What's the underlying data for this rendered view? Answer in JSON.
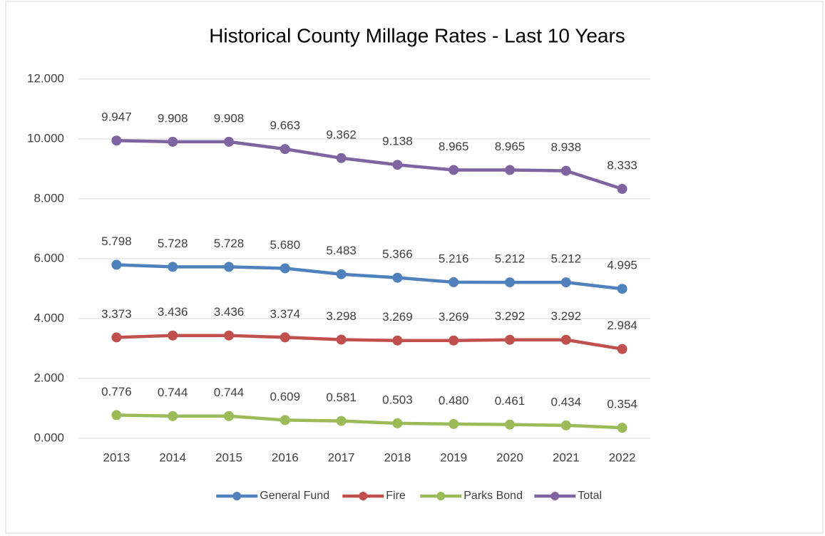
{
  "chart_data": {
    "type": "line",
    "title": "Historical County Millage Rates - Last 10 Years",
    "categories": [
      "2013",
      "2014",
      "2015",
      "2016",
      "2017",
      "2018",
      "2019",
      "2020",
      "2021",
      "2022"
    ],
    "series": [
      {
        "name": "General Fund",
        "color": "#4f81bd",
        "values": [
          5.798,
          5.728,
          5.728,
          5.68,
          5.483,
          5.366,
          5.216,
          5.212,
          5.212,
          4.995
        ],
        "value_labels": [
          "5.798",
          "5.728",
          "5.728",
          "5.680",
          "5.483",
          "5.366",
          "5.216",
          "5.212",
          "5.212",
          "4.995"
        ]
      },
      {
        "name": "Fire",
        "color": "#c0504d",
        "values": [
          3.373,
          3.436,
          3.436,
          3.374,
          3.298,
          3.269,
          3.269,
          3.292,
          3.292,
          2.984
        ],
        "value_labels": [
          "3.373",
          "3.436",
          "3.436",
          "3.374",
          "3.298",
          "3.269",
          "3.269",
          "3.292",
          "3.292",
          "2.984"
        ]
      },
      {
        "name": "Parks Bond",
        "color": "#9bbb59",
        "values": [
          0.776,
          0.744,
          0.744,
          0.609,
          0.581,
          0.503,
          0.48,
          0.461,
          0.434,
          0.354
        ],
        "value_labels": [
          "0.776",
          "0.744",
          "0.744",
          "0.609",
          "0.581",
          "0.503",
          "0.480",
          "0.461",
          "0.434",
          "0.354"
        ]
      },
      {
        "name": "Total",
        "color": "#8064a2",
        "values": [
          9.947,
          9.908,
          9.908,
          9.663,
          9.362,
          9.138,
          8.965,
          8.965,
          8.938,
          8.333
        ],
        "value_labels": [
          "9.947",
          "9.908",
          "9.908",
          "9.663",
          "9.362",
          "9.138",
          "8.965",
          "8.965",
          "8.938",
          "8.333"
        ]
      }
    ],
    "ylim": [
      0,
      12
    ],
    "yticks": [
      {
        "value": 0,
        "label": "0.000"
      },
      {
        "value": 2,
        "label": "2.000"
      },
      {
        "value": 4,
        "label": "4.000"
      },
      {
        "value": 6,
        "label": "6.000"
      },
      {
        "value": 8,
        "label": "8.000"
      },
      {
        "value": 10,
        "label": "10.000"
      },
      {
        "value": 12,
        "label": "12.000"
      }
    ],
    "grid": true,
    "legend": "bottom"
  }
}
